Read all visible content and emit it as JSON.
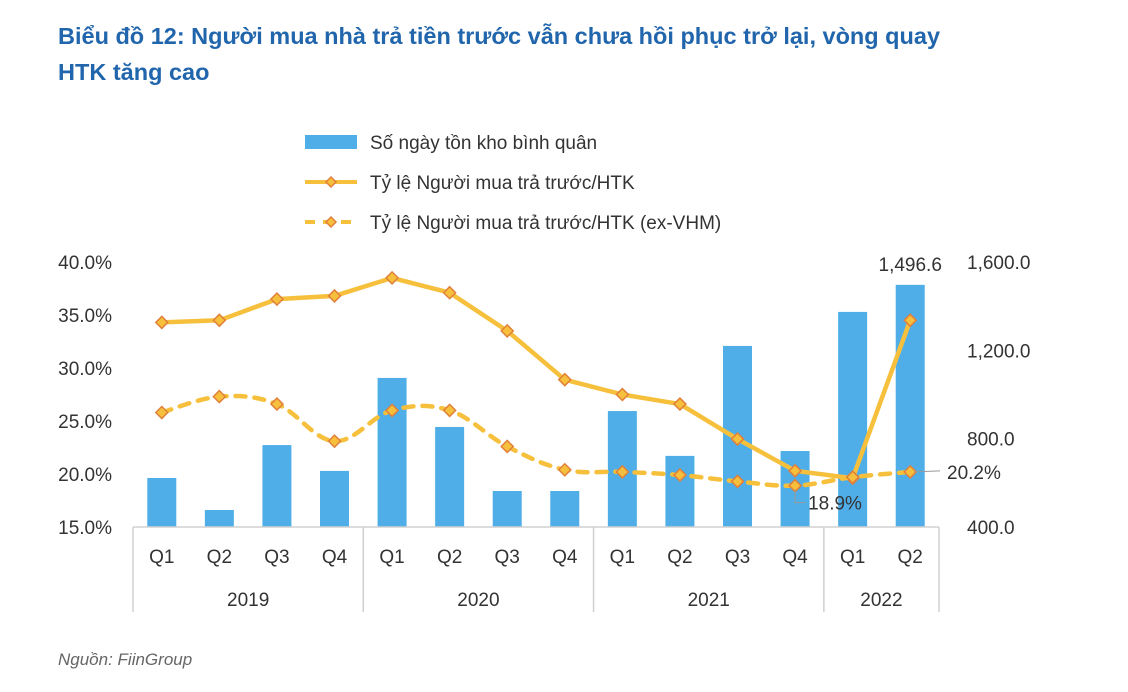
{
  "title": "Biểu đồ 12: Người mua nhà trả tiền trước vẫn chưa hồi phục trở lại, vòng quay HTK tăng cao",
  "source": "Nguồn: FiinGroup",
  "colors": {
    "bar": "#4faee8",
    "line": "#f6c03c",
    "marker_edge": "#e0803a",
    "title": "#2166ac"
  },
  "chart_data": {
    "type": "bar+line",
    "categories": [
      "Q1",
      "Q2",
      "Q3",
      "Q4",
      "Q1",
      "Q2",
      "Q3",
      "Q4",
      "Q1",
      "Q2",
      "Q3",
      "Q4",
      "Q1",
      "Q2"
    ],
    "groups": [
      {
        "label": "2019",
        "span": 4
      },
      {
        "label": "2020",
        "span": 4
      },
      {
        "label": "2021",
        "span": 4
      },
      {
        "label": "2022",
        "span": 2
      }
    ],
    "series": [
      {
        "name": "Số ngày tồn kho bình quân",
        "type": "bar",
        "axis": "right",
        "values": [
          622,
          477,
          771,
          654,
          1075,
          853,
          563,
          563,
          925,
          722,
          1220,
          744,
          1374,
          1496.6
        ]
      },
      {
        "name": "Tỷ lệ Người mua trả trước/HTK",
        "type": "line",
        "axis": "left",
        "style": "solid",
        "values": [
          34.3,
          34.5,
          36.5,
          36.8,
          38.5,
          37.1,
          33.5,
          28.9,
          27.5,
          26.6,
          23.3,
          20.3,
          19.6,
          34.5
        ]
      },
      {
        "name": "Tỷ lệ Người mua trả trước/HTK (ex-VHM)",
        "type": "line",
        "axis": "left",
        "style": "dashed",
        "values": [
          25.8,
          27.3,
          26.6,
          23.1,
          26.0,
          26.0,
          22.6,
          20.4,
          20.2,
          19.9,
          19.3,
          18.9,
          19.7,
          20.2
        ]
      }
    ],
    "data_labels": [
      {
        "series": 0,
        "index": 13,
        "text": "1,496.6"
      },
      {
        "series": 2,
        "index": 11,
        "text": "18.9%"
      },
      {
        "series": 2,
        "index": 13,
        "text": "20.2%"
      }
    ],
    "left_axis": {
      "ylim": [
        15,
        40
      ],
      "ticks": [
        "15.0%",
        "20.0%",
        "25.0%",
        "30.0%",
        "35.0%",
        "40.0%"
      ],
      "tick_values": [
        15,
        20,
        25,
        30,
        35,
        40
      ]
    },
    "right_axis": {
      "ylim": [
        400,
        1600
      ],
      "ticks": [
        "400.0",
        "800.0",
        "1,200.0",
        "1,600.0"
      ],
      "tick_values": [
        400,
        800,
        1200,
        1600
      ]
    },
    "grid": false,
    "legend_placement": "top"
  }
}
